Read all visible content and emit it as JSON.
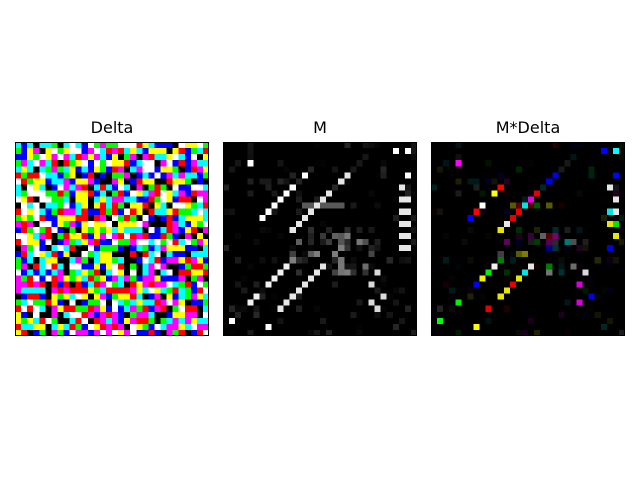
{
  "panels": [
    {
      "id": "delta",
      "title": "Delta",
      "kind": "random-rgb"
    },
    {
      "id": "m",
      "title": "M",
      "kind": "mask-grayscale"
    },
    {
      "id": "m-delta",
      "title": "M*Delta",
      "kind": "masked-rgb"
    }
  ],
  "grid_size": 32,
  "palette": [
    "#ff0000",
    "#00ff00",
    "#0000ff",
    "#ffff00",
    "#ff00ff",
    "#00ffff",
    "#ffffff",
    "#000000"
  ]
}
